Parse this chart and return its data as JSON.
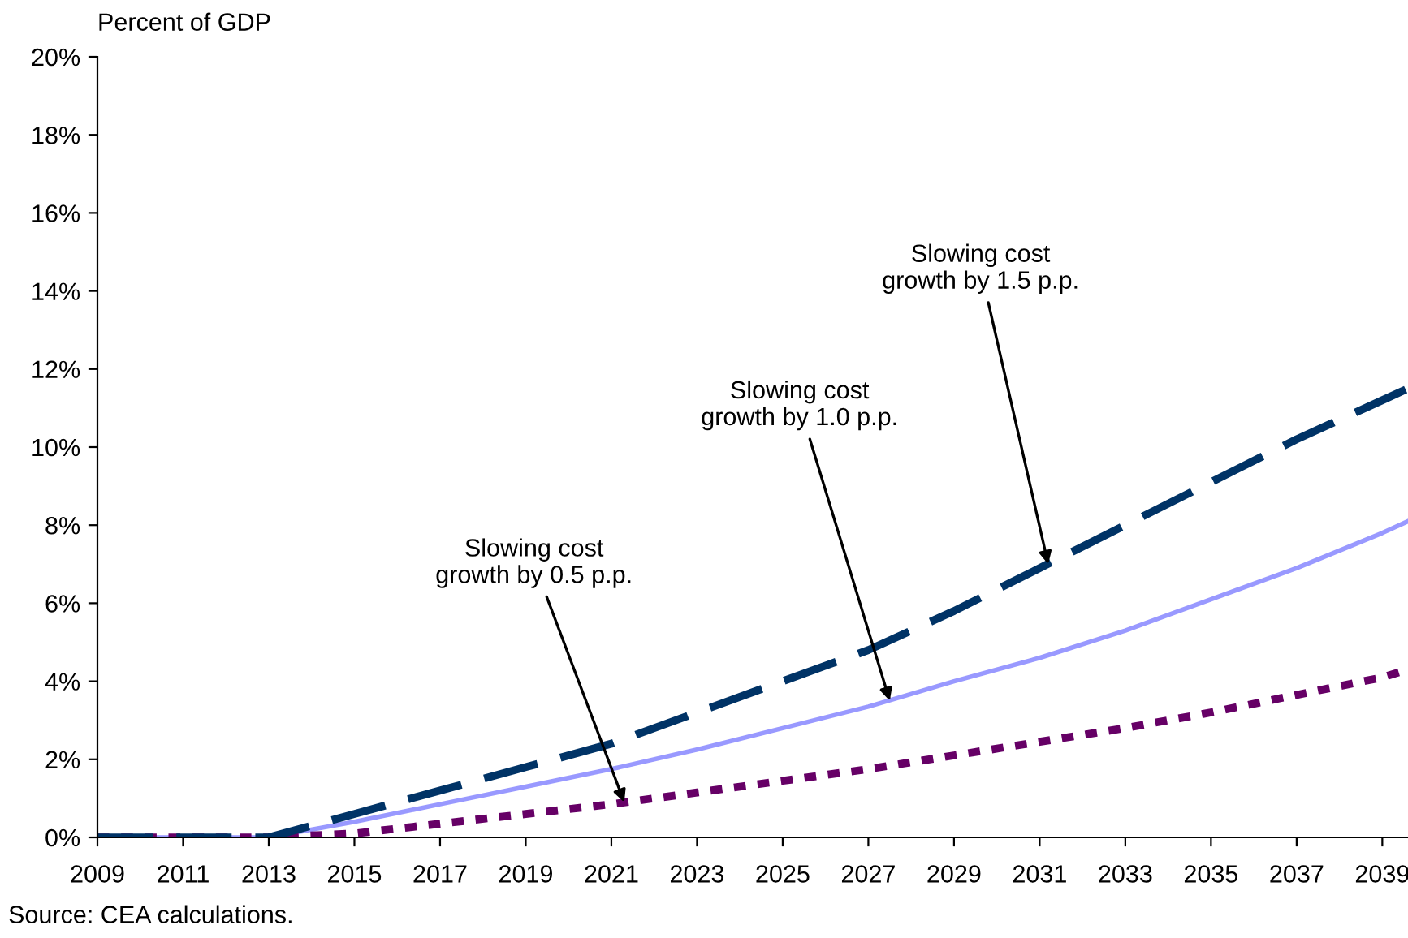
{
  "chart_data": {
    "type": "line",
    "ylabel": "Percent of GDP",
    "xlim": [
      2009,
      2039.6
    ],
    "ylim": [
      0,
      20
    ],
    "xticks": [
      2009,
      2011,
      2013,
      2015,
      2017,
      2019,
      2021,
      2023,
      2025,
      2027,
      2029,
      2031,
      2033,
      2035,
      2037,
      2039
    ],
    "yticks": [
      {
        "value": 0,
        "label": "0%"
      },
      {
        "value": 2,
        "label": "2%"
      },
      {
        "value": 4,
        "label": "4%"
      },
      {
        "value": 6,
        "label": "6%"
      },
      {
        "value": 8,
        "label": "8%"
      },
      {
        "value": 10,
        "label": "10%"
      },
      {
        "value": 12,
        "label": "12%"
      },
      {
        "value": 14,
        "label": "14%"
      },
      {
        "value": 16,
        "label": "16%"
      },
      {
        "value": 18,
        "label": "18%"
      },
      {
        "value": 20,
        "label": "20%"
      }
    ],
    "grid": false,
    "legend": false,
    "series": [
      {
        "color": "#9999ff",
        "line_style": "solid",
        "x": [
          2009,
          2011,
          2013,
          2015,
          2017,
          2019,
          2021,
          2023,
          2025,
          2027,
          2029,
          2031,
          2033,
          2035,
          2037,
          2039,
          2039.6
        ],
        "values": [
          0,
          0,
          0,
          0.4,
          0.85,
          1.3,
          1.75,
          2.25,
          2.8,
          3.35,
          4.0,
          4.6,
          5.3,
          6.1,
          6.9,
          7.8,
          8.1
        ]
      },
      {
        "color": "#660066",
        "line_style": "dotted",
        "x": [
          2009,
          2011,
          2013,
          2015,
          2017,
          2019,
          2021,
          2023,
          2025,
          2027,
          2029,
          2031,
          2033,
          2035,
          2037,
          2039,
          2039.6
        ],
        "values": [
          0,
          0,
          0,
          0.1,
          0.35,
          0.6,
          0.85,
          1.15,
          1.45,
          1.75,
          2.1,
          2.45,
          2.8,
          3.2,
          3.65,
          4.1,
          4.3
        ]
      },
      {
        "color": "#003366",
        "line_style": "dashed",
        "x": [
          2009,
          2011,
          2013,
          2015,
          2017,
          2019,
          2021,
          2023,
          2025,
          2027,
          2029,
          2031,
          2033,
          2035,
          2037,
          2039,
          2039.6
        ],
        "values": [
          0,
          0,
          0,
          0.6,
          1.2,
          1.8,
          2.4,
          3.2,
          4.0,
          4.8,
          5.8,
          6.9,
          8.0,
          9.1,
          10.2,
          11.2,
          11.5
        ]
      }
    ],
    "annotations": [
      {
        "text": "Slowing cost\ngrowth by 0.5 p.p.",
        "x": 2021.3,
        "y": 0.9
      },
      {
        "text": "Slowing cost\ngrowth by 1.0 p.p.",
        "x": 2027.5,
        "y": 3.5
      },
      {
        "text": "Slowing cost\ngrowth by 1.5 p.p.",
        "x": 2031.2,
        "y": 7.0
      },
      "Source: CEA calculations."
    ]
  }
}
